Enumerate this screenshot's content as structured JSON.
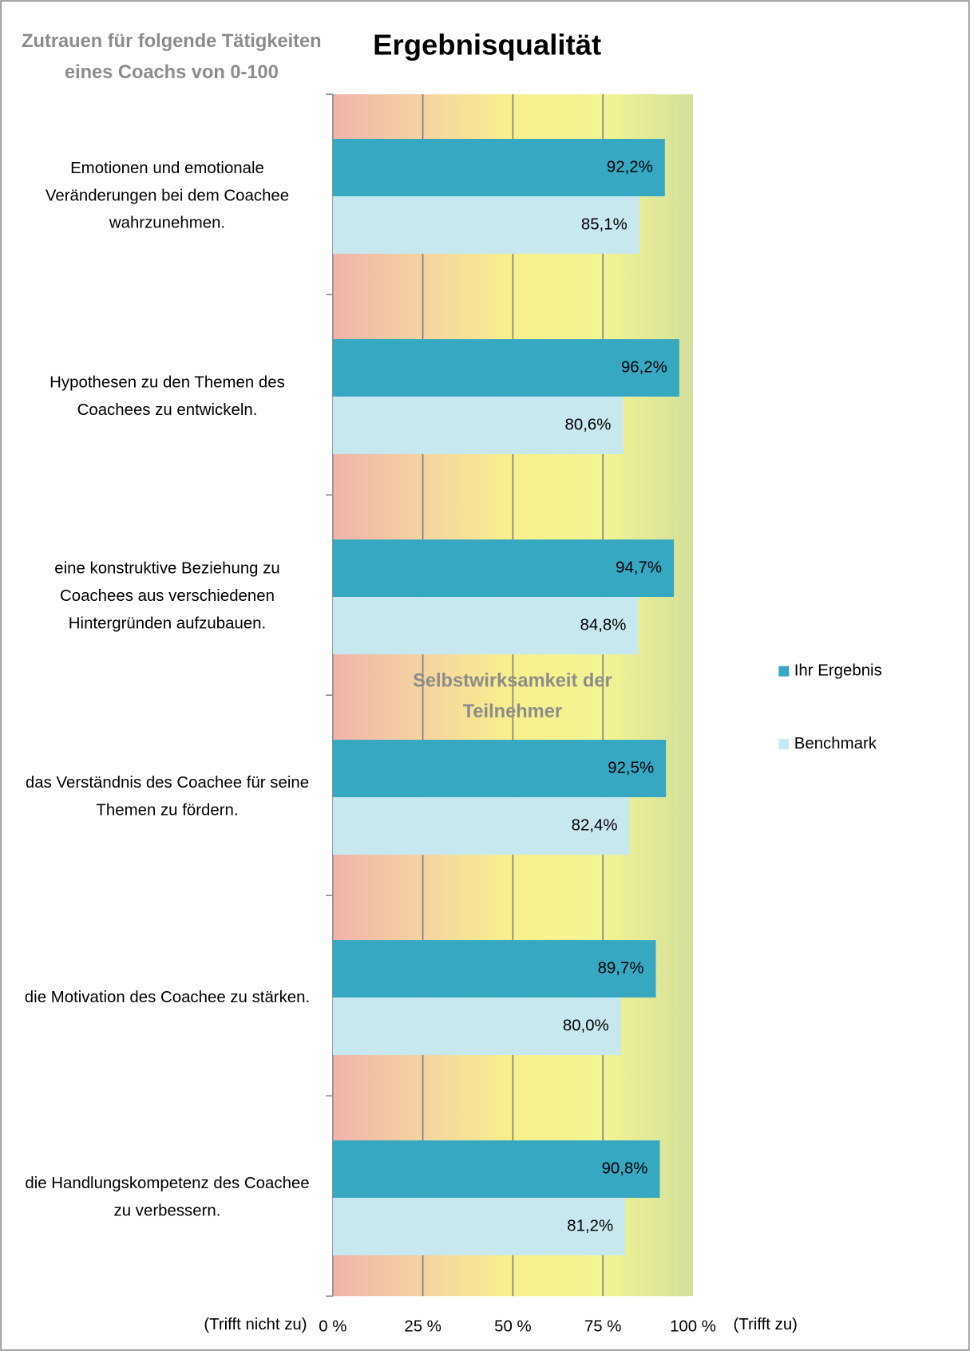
{
  "chart_data": {
    "type": "hbar",
    "title": "Ergebnisqualität",
    "y_label": "Zutrauen für folgende Tätigkeiten eines Coachs von 0-100",
    "annotations": [
      "Selbstwirksamkeit der Teilnehmer",
      "(Trifft nicht zu)",
      "(Trifft zu)"
    ],
    "categories": [
      "Emotionen und emotionale Veränderungen bei dem Coachee wahrzunehmen.",
      "Hypothesen zu den Themen des Coachees zu entwickeln.",
      "eine konstruktive Beziehung zu Coachees  aus verschiedenen Hintergründen aufzubauen.",
      "das Verständnis des Coachee für seine Themen zu fördern.",
      "die Motivation des Coachee zu stärken.",
      "die Handlungskompetenz des Coachee zu verbessern."
    ],
    "series": [
      {
        "name": "Ihr  Ergebnis",
        "color": "#36a8c2",
        "values": [
          92.2,
          96.2,
          94.7,
          92.5,
          89.7,
          90.8
        ],
        "value_labels": [
          "92,2%",
          "96,2%",
          "94,7%",
          "92,5%",
          "89,7%",
          "90,8%"
        ]
      },
      {
        "name": "Benchmark",
        "color": "#c8e8f0",
        "values": [
          85.1,
          80.6,
          84.8,
          82.4,
          80.0,
          81.2
        ],
        "value_labels": [
          "85,1%",
          "80,6%",
          "84,8%",
          "82,4%",
          "80,0%",
          "81,2%"
        ]
      }
    ],
    "xlim": [
      0,
      100
    ],
    "xticks": [
      {
        "value": 0,
        "label": "0 %"
      },
      {
        "value": 25,
        "label": "25 %"
      },
      {
        "value": 50,
        "label": "50 %"
      },
      {
        "value": 75,
        "label": "75 %"
      },
      {
        "value": 100,
        "label": "100 %"
      }
    ],
    "grid": true,
    "legend": "right"
  }
}
